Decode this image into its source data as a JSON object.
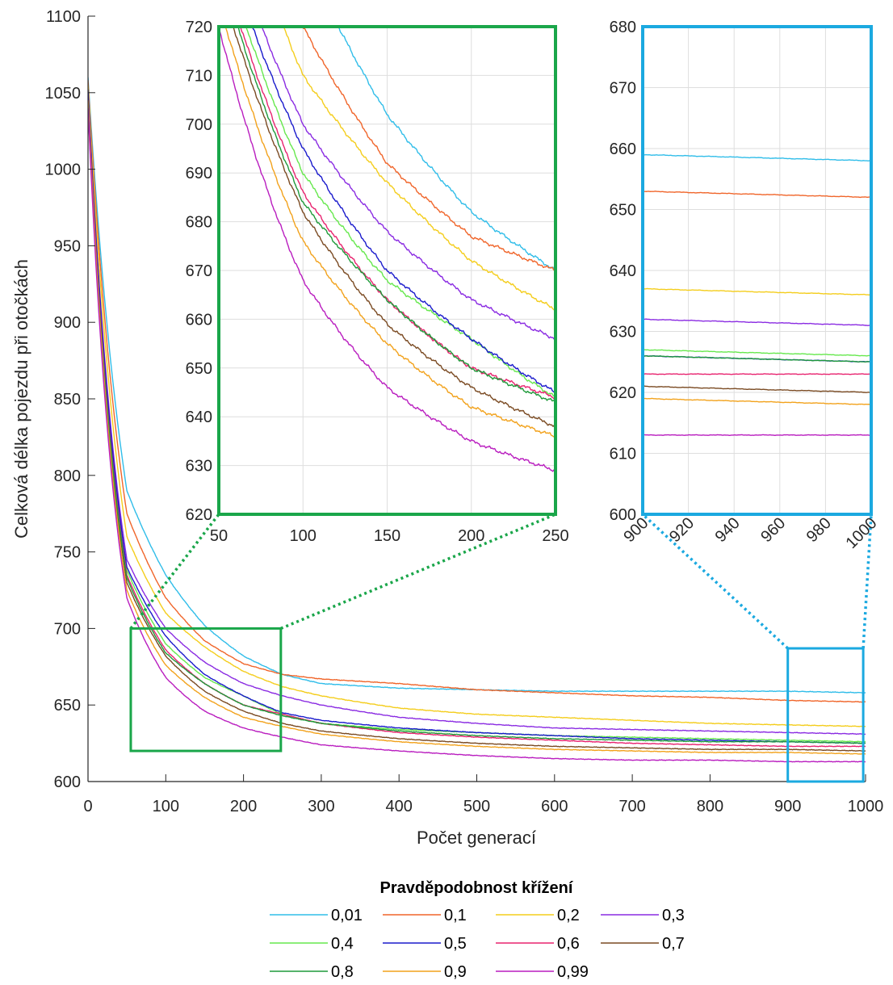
{
  "chart_data": {
    "type": "line",
    "xlabel": "Počet generací",
    "ylabel": "Celková délka pojezdu při otočkách",
    "xlim": [
      0,
      1000
    ],
    "ylim": [
      600,
      1100
    ],
    "x_ticks": [
      "0",
      "100",
      "200",
      "300",
      "400",
      "500",
      "600",
      "700",
      "800",
      "900",
      "1000"
    ],
    "y_ticks": [
      "600",
      "650",
      "700",
      "750",
      "800",
      "850",
      "900",
      "950",
      "1000",
      "1050",
      "1100"
    ],
    "grid": false,
    "legend": {
      "title": "Pravděpodobnost křížení",
      "placement": "bottom",
      "columns": 4
    },
    "series": [
      {
        "name": "0,01",
        "color": "#30bde9",
        "points": [
          [
            0,
            1060
          ],
          [
            50,
            790
          ],
          [
            100,
            735
          ],
          [
            150,
            702
          ],
          [
            200,
            682
          ],
          [
            250,
            670
          ],
          [
            300,
            664
          ],
          [
            400,
            661
          ],
          [
            500,
            660
          ],
          [
            600,
            659
          ],
          [
            700,
            659
          ],
          [
            800,
            659
          ],
          [
            900,
            659
          ],
          [
            1000,
            658
          ]
        ]
      },
      {
        "name": "0,1",
        "color": "#f0652a",
        "points": [
          [
            0,
            1058
          ],
          [
            50,
            775
          ],
          [
            100,
            720
          ],
          [
            150,
            692
          ],
          [
            200,
            677
          ],
          [
            250,
            670
          ],
          [
            300,
            667
          ],
          [
            400,
            664
          ],
          [
            500,
            660
          ],
          [
            600,
            658
          ],
          [
            700,
            656
          ],
          [
            800,
            655
          ],
          [
            900,
            653
          ],
          [
            1000,
            652
          ]
        ]
      },
      {
        "name": "0,2",
        "color": "#f4cd1c",
        "points": [
          [
            0,
            1055
          ],
          [
            50,
            760
          ],
          [
            100,
            710
          ],
          [
            150,
            688
          ],
          [
            200,
            672
          ],
          [
            250,
            662
          ],
          [
            300,
            656
          ],
          [
            400,
            648
          ],
          [
            500,
            644
          ],
          [
            600,
            642
          ],
          [
            700,
            640
          ],
          [
            800,
            638
          ],
          [
            900,
            637
          ],
          [
            1000,
            636
          ]
        ]
      },
      {
        "name": "0,3",
        "color": "#8a2be2",
        "points": [
          [
            0,
            1050
          ],
          [
            50,
            745
          ],
          [
            100,
            700
          ],
          [
            150,
            678
          ],
          [
            200,
            664
          ],
          [
            250,
            656
          ],
          [
            300,
            650
          ],
          [
            400,
            642
          ],
          [
            500,
            638
          ],
          [
            600,
            635
          ],
          [
            700,
            634
          ],
          [
            800,
            633
          ],
          [
            900,
            632
          ],
          [
            1000,
            631
          ]
        ]
      },
      {
        "name": "0,4",
        "color": "#66e84d",
        "points": [
          [
            0,
            1048
          ],
          [
            50,
            738
          ],
          [
            100,
            690
          ],
          [
            150,
            668
          ],
          [
            200,
            656
          ],
          [
            250,
            644
          ],
          [
            300,
            638
          ],
          [
            400,
            634
          ],
          [
            500,
            632
          ],
          [
            600,
            630
          ],
          [
            700,
            629
          ],
          [
            800,
            628
          ],
          [
            900,
            627
          ],
          [
            1000,
            626
          ]
        ]
      },
      {
        "name": "0,5",
        "color": "#1a1acc",
        "points": [
          [
            0,
            1052
          ],
          [
            50,
            740
          ],
          [
            100,
            695
          ],
          [
            150,
            670
          ],
          [
            200,
            656
          ],
          [
            250,
            645
          ],
          [
            300,
            640
          ],
          [
            400,
            635
          ],
          [
            500,
            632
          ],
          [
            600,
            630
          ],
          [
            700,
            628
          ],
          [
            800,
            627
          ],
          [
            900,
            626
          ],
          [
            1000,
            625
          ]
        ]
      },
      {
        "name": "0,6",
        "color": "#e8236f",
        "points": [
          [
            0,
            1045
          ],
          [
            50,
            735
          ],
          [
            100,
            686
          ],
          [
            150,
            664
          ],
          [
            200,
            650
          ],
          [
            250,
            644
          ],
          [
            300,
            638
          ],
          [
            400,
            632
          ],
          [
            500,
            629
          ],
          [
            600,
            627
          ],
          [
            700,
            625
          ],
          [
            800,
            624
          ],
          [
            900,
            623
          ],
          [
            1000,
            623
          ]
        ]
      },
      {
        "name": "0,7",
        "color": "#7a4a22",
        "points": [
          [
            0,
            1042
          ],
          [
            50,
            730
          ],
          [
            100,
            682
          ],
          [
            150,
            659
          ],
          [
            200,
            646
          ],
          [
            250,
            638
          ],
          [
            300,
            633
          ],
          [
            400,
            628
          ],
          [
            500,
            625
          ],
          [
            600,
            623
          ],
          [
            700,
            622
          ],
          [
            800,
            621
          ],
          [
            900,
            621
          ],
          [
            1000,
            620
          ]
        ]
      },
      {
        "name": "0,8",
        "color": "#1f9a3a",
        "points": [
          [
            0,
            1040
          ],
          [
            50,
            733
          ],
          [
            100,
            684
          ],
          [
            150,
            664
          ],
          [
            200,
            650
          ],
          [
            250,
            643
          ],
          [
            300,
            638
          ],
          [
            400,
            633
          ],
          [
            500,
            630
          ],
          [
            600,
            628
          ],
          [
            700,
            627
          ],
          [
            800,
            626
          ],
          [
            900,
            626
          ],
          [
            1000,
            625
          ]
        ]
      },
      {
        "name": "0,9",
        "color": "#f2a21c",
        "points": [
          [
            0,
            1045
          ],
          [
            50,
            725
          ],
          [
            100,
            676
          ],
          [
            150,
            655
          ],
          [
            200,
            642
          ],
          [
            250,
            636
          ],
          [
            300,
            631
          ],
          [
            400,
            626
          ],
          [
            500,
            623
          ],
          [
            600,
            621
          ],
          [
            700,
            620
          ],
          [
            800,
            619
          ],
          [
            900,
            619
          ],
          [
            1000,
            618
          ]
        ]
      },
      {
        "name": "0,99",
        "color": "#b91dbf",
        "points": [
          [
            0,
            1040
          ],
          [
            50,
            720
          ],
          [
            100,
            668
          ],
          [
            150,
            646
          ],
          [
            200,
            635
          ],
          [
            250,
            629
          ],
          [
            300,
            624
          ],
          [
            400,
            620
          ],
          [
            500,
            617
          ],
          [
            600,
            615
          ],
          [
            700,
            614
          ],
          [
            800,
            614
          ],
          [
            900,
            613
          ],
          [
            1000,
            613
          ]
        ]
      }
    ],
    "insets": [
      {
        "name": "zoom-early",
        "color": "#1aa64a",
        "xlim": [
          50,
          250
        ],
        "ylim": [
          620,
          720
        ],
        "x_ticks": [
          "50",
          "100",
          "150",
          "200",
          "250"
        ],
        "y_ticks": [
          "620",
          "630",
          "640",
          "650",
          "660",
          "670",
          "680",
          "690",
          "700",
          "710",
          "720"
        ],
        "grid": true
      },
      {
        "name": "zoom-late",
        "color": "#1ba9e0",
        "xlim": [
          900,
          1000
        ],
        "ylim": [
          600,
          680
        ],
        "x_ticks": [
          "900",
          "920",
          "940",
          "960",
          "980",
          "1000"
        ],
        "y_ticks": [
          "600",
          "610",
          "620",
          "630",
          "640",
          "650",
          "660",
          "670",
          "680"
        ],
        "grid": true
      }
    ]
  }
}
